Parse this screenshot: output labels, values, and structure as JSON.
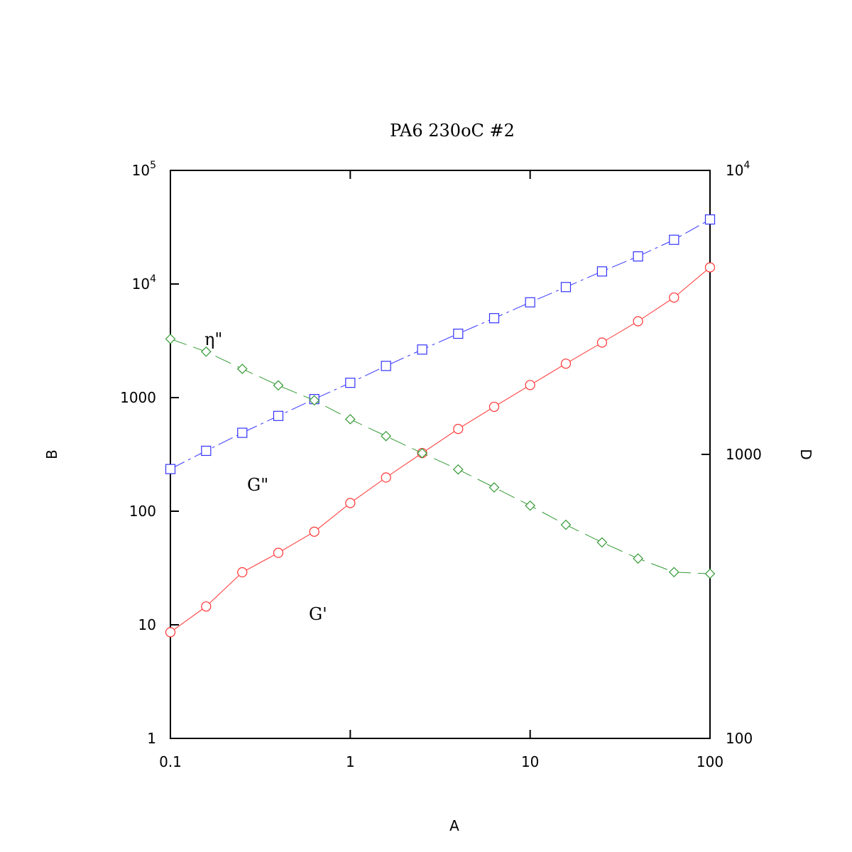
{
  "chart_data": {
    "type": "line",
    "title": "PA6 230oC #2",
    "xlabel": "A",
    "ylabel_left": "B",
    "ylabel_right": "D",
    "x_scale": "log",
    "y_left_scale": "log",
    "y_right_scale": "log",
    "xlim": [
      0.1,
      100
    ],
    "ylim_left": [
      1,
      100000
    ],
    "ylim_right": [
      100,
      10000
    ],
    "x_ticks": [
      {
        "v": 0.1,
        "label": "0.1"
      },
      {
        "v": 1,
        "label": "1"
      },
      {
        "v": 10,
        "label": "10"
      },
      {
        "v": 100,
        "label": "100"
      }
    ],
    "y_left_ticks": [
      {
        "v": 1,
        "label": "1"
      },
      {
        "v": 10,
        "label": "10"
      },
      {
        "v": 100,
        "label": "100"
      },
      {
        "v": 1000,
        "label": "1000"
      },
      {
        "v": 10000,
        "base": "10",
        "exp": "4"
      },
      {
        "v": 100000,
        "base": "10",
        "exp": "5"
      }
    ],
    "y_right_ticks": [
      {
        "v": 100,
        "label": "100"
      },
      {
        "v": 1000,
        "label": "1000"
      },
      {
        "v": 10000,
        "base": "10",
        "exp": "4"
      }
    ],
    "grid": false,
    "x": [
      0.1,
      0.158,
      0.251,
      0.398,
      0.631,
      1.0,
      1.58,
      2.51,
      3.98,
      6.31,
      10.0,
      15.8,
      25.1,
      39.8,
      63.1,
      100
    ],
    "series": [
      {
        "key": "G'",
        "axis": "left",
        "color": "#ff3333",
        "marker": "circle",
        "dash": "solid",
        "values": [
          8.6,
          14.5,
          29,
          43,
          66,
          118,
          198,
          325,
          530,
          830,
          1290,
          1990,
          3050,
          4700,
          7600,
          14000
        ]
      },
      {
        "key": "G\"",
        "axis": "left",
        "color": "#3333ff",
        "marker": "square",
        "dash": "dashdot",
        "values": [
          235,
          340,
          490,
          690,
          970,
          1350,
          1900,
          2650,
          3650,
          5000,
          6900,
          9400,
          12900,
          17500,
          24500,
          37000
        ]
      },
      {
        "key": "eta\"",
        "axis": "right",
        "color": "#339933",
        "marker": "diamond",
        "dash": "dashed",
        "values": [
          2550,
          2300,
          2000,
          1750,
          1550,
          1330,
          1160,
          1010,
          885,
          765,
          660,
          565,
          490,
          430,
          385,
          380
        ]
      }
    ],
    "annotations": [
      {
        "text": "η\"",
        "series": "eta\""
      },
      {
        "text": "G\"",
        "series": "G\""
      },
      {
        "text": "G'",
        "series": "G'"
      }
    ]
  }
}
